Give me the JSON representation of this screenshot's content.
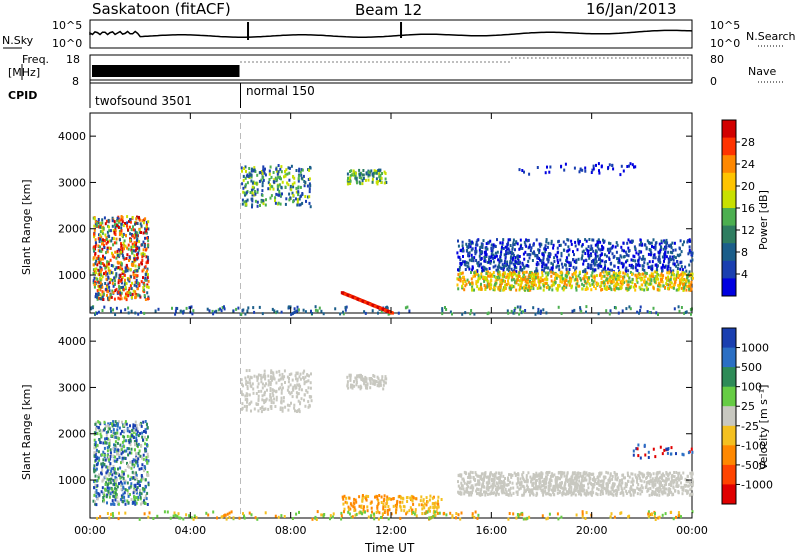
{
  "header": {
    "radar": "Saskatoon (fitACF)",
    "beam": "Beam 12",
    "date": "16/Jan/2013"
  },
  "top_panels": {
    "nsky_label": "N.Sky",
    "nsearch_label": "N.Search",
    "nsky_ticks": [
      "10^5",
      "10^0"
    ],
    "nsearch_ticks": [
      "10^5",
      "10^0"
    ],
    "freq_label": "Freq.",
    "freq_unit": "[MHz]",
    "freq_ticks": [
      "18",
      "8"
    ],
    "nave_label": "Nave",
    "nave_ticks": [
      "80",
      "0"
    ],
    "cpid_label": "CPID",
    "cpid_modes": [
      {
        "name": "twofsound 3501",
        "start_hour": 0,
        "end_hour": 6
      },
      {
        "name": "normal 150",
        "start_hour": 6,
        "end_hour": 24
      }
    ]
  },
  "axes": {
    "ylabel": "Slant Range [km]",
    "xlabel": "Time UT",
    "x_ticks": [
      "00:00",
      "04:00",
      "08:00",
      "12:00",
      "16:00",
      "20:00",
      "00:00"
    ],
    "y_ticks": [
      "4000",
      "3000",
      "2000",
      "1000"
    ]
  },
  "colorbars": {
    "power": {
      "label": "Power [dB]",
      "ticks": [
        "28",
        "24",
        "20",
        "16",
        "12",
        "8",
        "4"
      ],
      "colors": [
        "#d10000",
        "#ff3300",
        "#ff8800",
        "#ffc400",
        "#c8e000",
        "#4caf50",
        "#2e7d60",
        "#1b5e8a",
        "#1a3fb0",
        "#0000e0"
      ]
    },
    "velocity": {
      "label": "Velocity [m s⁻¹]",
      "ticks": [
        "1000",
        "500",
        "100",
        "25",
        "-25",
        "-100",
        "-500",
        "-1000"
      ],
      "colors": [
        "#1a3fb0",
        "#2b6fc4",
        "#2e8b57",
        "#66cc44",
        "#c8c8c0",
        "#f4c020",
        "#ff8800",
        "#ff4400",
        "#e00000"
      ]
    }
  },
  "chart_data": [
    {
      "type": "heatmap",
      "title": "Power",
      "xlabel": "Time UT",
      "ylabel": "Slant Range [km]",
      "xlim": [
        0,
        24
      ],
      "ylim": [
        180,
        4500
      ],
      "regions": [
        {
          "t0": 0.0,
          "t1": 2.3,
          "r0": 500,
          "r1": 2200,
          "level": "mixed"
        },
        {
          "t0": 6.0,
          "t1": 8.8,
          "r0": 2500,
          "r1": 3400,
          "level": "low"
        },
        {
          "t0": 10.0,
          "t1": 12.0,
          "r0": 200,
          "r1": 500,
          "level": "high"
        },
        {
          "t0": 10.2,
          "t1": 11.7,
          "r0": 3000,
          "r1": 3300,
          "level": "mid"
        },
        {
          "t0": 14.6,
          "t1": 24.0,
          "r0": 700,
          "r1": 1800,
          "level": "band"
        }
      ]
    },
    {
      "type": "heatmap",
      "title": "Velocity",
      "xlabel": "Time UT",
      "ylabel": "Slant Range [km]",
      "xlim": [
        0,
        24
      ],
      "ylim": [
        180,
        4500
      ],
      "regions": [
        {
          "t0": 0.0,
          "t1": 2.3,
          "r0": 500,
          "r1": 2200,
          "level": "mixed"
        },
        {
          "t0": 6.0,
          "t1": 8.8,
          "r0": 2500,
          "r1": 3400,
          "level": "ground"
        },
        {
          "t0": 10.2,
          "t1": 11.7,
          "r0": 3000,
          "r1": 3300,
          "level": "ground"
        },
        {
          "t0": 14.6,
          "t1": 24.0,
          "r0": 700,
          "r1": 1200,
          "level": "ground"
        }
      ]
    }
  ]
}
